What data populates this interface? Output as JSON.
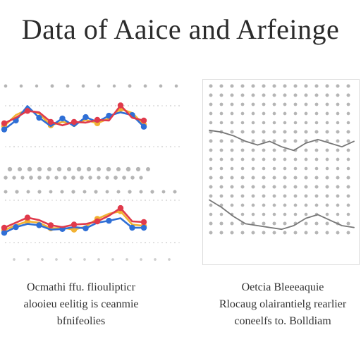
{
  "title": "Data of Aaice and Arfeinge",
  "chart_data": [
    {
      "type": "line",
      "panel": "left-top",
      "x": [
        1,
        2,
        3,
        4,
        5,
        6,
        7,
        8,
        9,
        10,
        11,
        12,
        13
      ],
      "series": [
        {
          "color": "#f2b233",
          "values": [
            3.0,
            4.6,
            5.4,
            4.8,
            3.1,
            3.6,
            3.3,
            3.9,
            3.4,
            4.1,
            5.5,
            4.9,
            3.2
          ]
        },
        {
          "color": "#2f6fd6",
          "values": [
            2.5,
            3.8,
            5.9,
            4.2,
            3.0,
            4.1,
            3.0,
            4.3,
            3.6,
            4.5,
            5.0,
            4.6,
            2.9
          ]
        },
        {
          "color": "#e03a4b",
          "values": [
            3.4,
            4.2,
            5.2,
            5.0,
            3.6,
            3.1,
            3.6,
            3.5,
            3.9,
            3.8,
            6.0,
            4.2,
            3.8
          ]
        }
      ],
      "ylim": [
        0,
        8
      ]
    },
    {
      "type": "line",
      "panel": "left-bottom",
      "x": [
        1,
        2,
        3,
        4,
        5,
        6,
        7,
        8,
        9,
        10,
        11,
        12,
        13
      ],
      "series": [
        {
          "color": "#f2b233",
          "values": [
            2.6,
            3.4,
            4.0,
            3.8,
            2.9,
            3.0,
            2.7,
            3.2,
            4.4,
            5.2,
            5.6,
            3.5,
            3.3
          ]
        },
        {
          "color": "#2f6fd6",
          "values": [
            2.2,
            3.1,
            3.6,
            3.4,
            2.7,
            2.8,
            3.1,
            2.9,
            3.8,
            4.1,
            4.5,
            3.0,
            3.0
          ]
        },
        {
          "color": "#e03a4b",
          "values": [
            3.0,
            3.8,
            4.6,
            4.2,
            3.4,
            3.1,
            3.5,
            3.6,
            4.0,
            4.9,
            6.1,
            4.0,
            3.9
          ]
        }
      ],
      "ylim": [
        0,
        8
      ]
    },
    {
      "type": "line",
      "panel": "right",
      "x": [
        0,
        1,
        2,
        3,
        4,
        5,
        6,
        7,
        8,
        9,
        10,
        11,
        12
      ],
      "series": [
        {
          "color": "#777777",
          "values": [
            7.2,
            7.1,
            6.9,
            6.6,
            6.4,
            6.6,
            6.3,
            6.1,
            6.5,
            6.7,
            6.5,
            6.3,
            6.6
          ]
        },
        {
          "color": "#777777",
          "values": [
            3.4,
            3.0,
            2.5,
            2.1,
            2.0,
            1.9,
            1.8,
            2.0,
            2.4,
            2.6,
            2.3,
            2.0,
            1.9
          ]
        }
      ],
      "ylim": [
        0,
        10
      ]
    }
  ],
  "colors": {
    "grid_dot": "#9c9c9c",
    "frame": "#dcdcdc",
    "text": "#2b2b2b"
  },
  "left_caption": [
    "Ocmathi ffu. flioulipticr",
    "alooieu eelitig is ceanmie",
    "bfnifeolies"
  ],
  "right_caption": [
    "Oetcia Bleeeaquie",
    "Rlocaug olairantielg rearlier",
    "coneelfs to. Bolldiam"
  ]
}
